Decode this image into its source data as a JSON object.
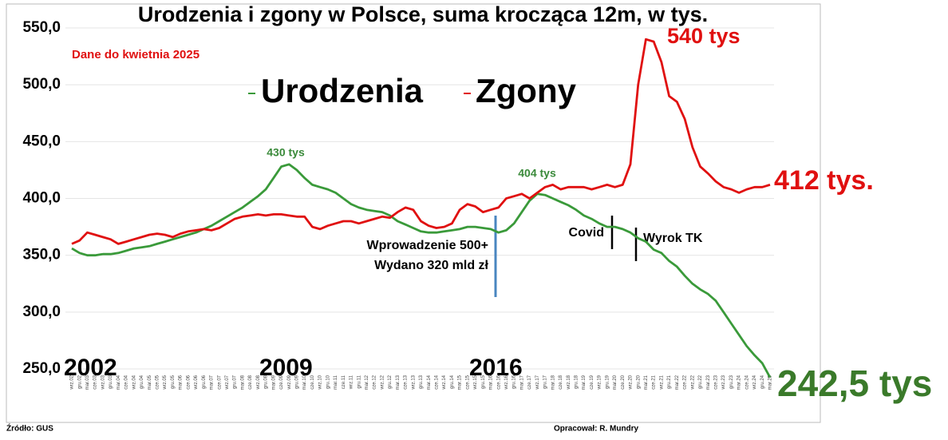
{
  "chart_data": {
    "type": "line",
    "title": "Urodzenia i zgony w Polsce, suma krocząca 12m, w tys.",
    "subtitle": "Dane do kwietnia 2025",
    "categories": [
      "wrz.02",
      "gru.02",
      "mar.03",
      "cze.03",
      "wrz.03",
      "gru.03",
      "mar.04",
      "cze.04",
      "wrz.04",
      "gru.04",
      "mar.05",
      "cze.05",
      "wrz.05",
      "gru.05",
      "mar.06",
      "cze.06",
      "wrz.06",
      "gru.06",
      "mar.07",
      "cze.07",
      "wrz.07",
      "gru.07",
      "mar.08",
      "cze.08",
      "wrz.08",
      "gru.08",
      "mar.09",
      "cze.09",
      "wrz.09",
      "gru.09",
      "mar.10",
      "cze.10",
      "wrz.10",
      "gru.10",
      "mar.11",
      "cze.11",
      "wrz.11",
      "gru.11",
      "mar.12",
      "cze.12",
      "wrz.12",
      "gru.12",
      "mar.13",
      "cze.13",
      "wrz.13",
      "gru.13",
      "mar.14",
      "cze.14",
      "wrz.14",
      "gru.14",
      "mar.15",
      "cze.15",
      "wrz.15",
      "gru.15",
      "mar.16",
      "cze.16",
      "wrz.16",
      "gru.16",
      "mar.17",
      "cze.17",
      "wrz.17",
      "gru.17",
      "mar.18",
      "cze.18",
      "wrz.18",
      "gru.18",
      "mar.19",
      "cze.19",
      "wrz.19",
      "gru.19",
      "mar.20",
      "cze.20",
      "wrz.20",
      "gru.20",
      "mar.21",
      "cze.21",
      "wrz.21",
      "gru.21",
      "mar.22",
      "cze.22",
      "wrz.22",
      "gru.22",
      "mar.23",
      "cze.23",
      "wrz.23",
      "gru.23",
      "mar.24",
      "cze.24",
      "wrz.24",
      "gru.24",
      "mar.25"
    ],
    "series": [
      {
        "name": "Urodzenia",
        "color": "#3a9a3a",
        "values": [
          356,
          352,
          350,
          350,
          351,
          351,
          352,
          354,
          356,
          357,
          358,
          360,
          362,
          364,
          366,
          368,
          370,
          373,
          376,
          380,
          384,
          388,
          392,
          397,
          402,
          408,
          418,
          428,
          430,
          425,
          418,
          412,
          410,
          408,
          405,
          400,
          395,
          392,
          390,
          389,
          388,
          385,
          380,
          377,
          374,
          371,
          370,
          370,
          371,
          372,
          373,
          375,
          375,
          374,
          373,
          370,
          372,
          378,
          388,
          398,
          404,
          403,
          400,
          397,
          394,
          390,
          385,
          382,
          378,
          375,
          375,
          373,
          370,
          365,
          362,
          355,
          352,
          345,
          340,
          332,
          325,
          320,
          316,
          310,
          300,
          290,
          280,
          270,
          262,
          255,
          242.5
        ]
      },
      {
        "name": "Zgony",
        "color": "#e01010",
        "values": [
          360,
          363,
          370,
          368,
          366,
          364,
          360,
          362,
          364,
          366,
          368,
          369,
          368,
          366,
          369,
          371,
          372,
          373,
          372,
          374,
          378,
          382,
          384,
          385,
          386,
          385,
          386,
          386,
          385,
          384,
          384,
          375,
          373,
          376,
          378,
          380,
          380,
          378,
          380,
          382,
          384,
          383,
          388,
          392,
          390,
          380,
          376,
          374,
          375,
          378,
          390,
          395,
          393,
          388,
          390,
          392,
          400,
          402,
          404,
          400,
          405,
          410,
          412,
          408,
          410,
          410,
          410,
          408,
          410,
          412,
          410,
          412,
          430,
          500,
          540,
          538,
          520,
          490,
          485,
          470,
          445,
          428,
          422,
          415,
          410,
          408,
          405,
          408,
          410,
          410,
          412
        ]
      }
    ],
    "ylim": [
      250,
      550
    ],
    "yticks": [
      {
        "value": 250,
        "label": "250,0"
      },
      {
        "value": 300,
        "label": "300,0"
      },
      {
        "value": 350,
        "label": "350,0"
      },
      {
        "value": 400,
        "label": "400,0"
      },
      {
        "value": 450,
        "label": "450,0"
      },
      {
        "value": 500,
        "label": "500,0"
      },
      {
        "value": 550,
        "label": "550,0"
      }
    ],
    "grid": true,
    "annotations": [
      "430 tys",
      "404 tys",
      "540 tys",
      "412 tys.",
      "242,5 tys",
      "2002",
      "2009",
      "2016",
      "Wprowadzenie 500+",
      "Wydano 320 mld zł",
      "Covid",
      "Wyrok TK"
    ],
    "source": "Źródło: GUS",
    "author": "Opracował: R. Mundry"
  }
}
